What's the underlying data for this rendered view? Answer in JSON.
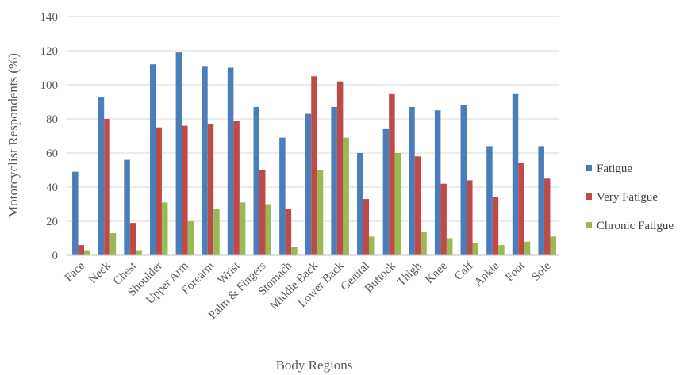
{
  "chart_data": {
    "type": "bar",
    "title": "",
    "xlabel": "Body Regions",
    "ylabel": "Motorcyclist Respondents (%)",
    "ylim": [
      0,
      140
    ],
    "yticks": [
      0,
      20,
      40,
      60,
      80,
      100,
      120,
      140
    ],
    "grid": true,
    "legend_position": "right",
    "categories": [
      "Face",
      "Neck",
      "Chest",
      "Shoulder",
      "Upper Arm",
      "Forearm",
      "Wrist",
      "Palm & Fingers",
      "Stomach",
      "Middle Back",
      "Lower Back",
      "Genital",
      "Buttock",
      "Thigh",
      "Knee",
      "Calf",
      "Ankle",
      "Foot",
      "Sole"
    ],
    "series": [
      {
        "name": "Fatigue",
        "color": "#4a7ebb",
        "values": [
          49,
          93,
          56,
          112,
          119,
          111,
          110,
          87,
          69,
          83,
          87,
          60,
          74,
          87,
          85,
          88,
          64,
          95,
          64
        ]
      },
      {
        "name": "Very Fatigue",
        "color": "#be4b48",
        "values": [
          6,
          80,
          19,
          75,
          76,
          77,
          79,
          50,
          27,
          105,
          102,
          33,
          95,
          58,
          42,
          44,
          34,
          54,
          45
        ]
      },
      {
        "name": "Chronic Fatigue",
        "color": "#98b954",
        "values": [
          3,
          13,
          3,
          31,
          20,
          27,
          31,
          30,
          5,
          50,
          69,
          11,
          60,
          14,
          10,
          7,
          6,
          8,
          11
        ]
      }
    ]
  }
}
